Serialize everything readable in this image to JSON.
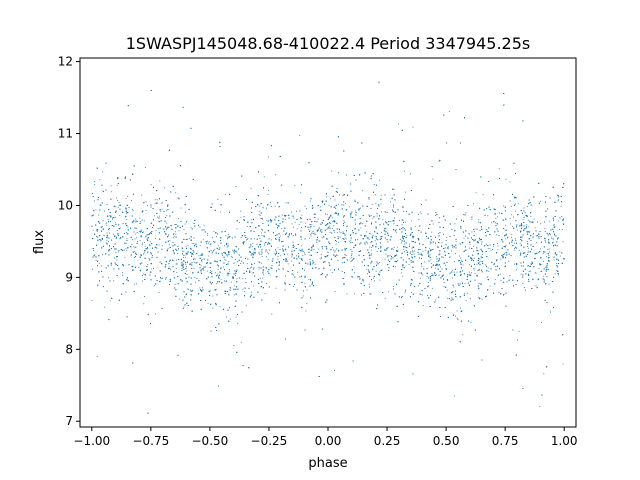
{
  "chart_data": {
    "type": "scatter",
    "title": "1SWASPJ145048.68-410022.4 Period 3347945.25s",
    "xlabel": "phase",
    "ylabel": "flux",
    "xlim": [
      -1.05,
      1.05
    ],
    "ylim": [
      6.92,
      12.05
    ],
    "x_ticks": [
      -1.0,
      -0.75,
      -0.5,
      -0.25,
      0.0,
      0.25,
      0.5,
      0.75,
      1.0
    ],
    "x_tick_labels": [
      "−1.00",
      "−0.75",
      "−0.50",
      "−0.25",
      "0.00",
      "0.25",
      "0.50",
      "0.75",
      "1.00"
    ],
    "y_ticks": [
      7,
      8,
      9,
      10,
      11,
      12
    ],
    "y_tick_labels": [
      "7",
      "8",
      "9",
      "10",
      "11",
      "12"
    ],
    "grid": false,
    "legend": "none",
    "marker_color": "#1f77b4",
    "series": [
      {
        "phase_range": [
          -1.0,
          1.0
        ],
        "mean_flux_profile": [
          {
            "x": -1.0,
            "y": 9.6
          },
          {
            "x": -0.9,
            "y": 9.6
          },
          {
            "x": -0.8,
            "y": 9.45
          },
          {
            "x": -0.7,
            "y": 9.55
          },
          {
            "x": -0.6,
            "y": 9.25
          },
          {
            "x": -0.5,
            "y": 9.2
          },
          {
            "x": -0.4,
            "y": 9.2
          },
          {
            "x": -0.3,
            "y": 9.4
          },
          {
            "x": -0.2,
            "y": 9.5
          },
          {
            "x": -0.1,
            "y": 9.4
          },
          {
            "x": 0.0,
            "y": 9.6
          },
          {
            "x": 0.1,
            "y": 9.6
          },
          {
            "x": 0.2,
            "y": 9.45
          },
          {
            "x": 0.3,
            "y": 9.55
          },
          {
            "x": 0.4,
            "y": 9.25
          },
          {
            "x": 0.5,
            "y": 9.2
          },
          {
            "x": 0.6,
            "y": 9.2
          },
          {
            "x": 0.7,
            "y": 9.4
          },
          {
            "x": 0.8,
            "y": 9.5
          },
          {
            "x": 0.9,
            "y": 9.4
          },
          {
            "x": 1.0,
            "y": 9.6
          }
        ],
        "typical_spread": 0.35,
        "flux_extent": [
          7.1,
          11.9
        ],
        "point_count": 9000
      }
    ]
  }
}
